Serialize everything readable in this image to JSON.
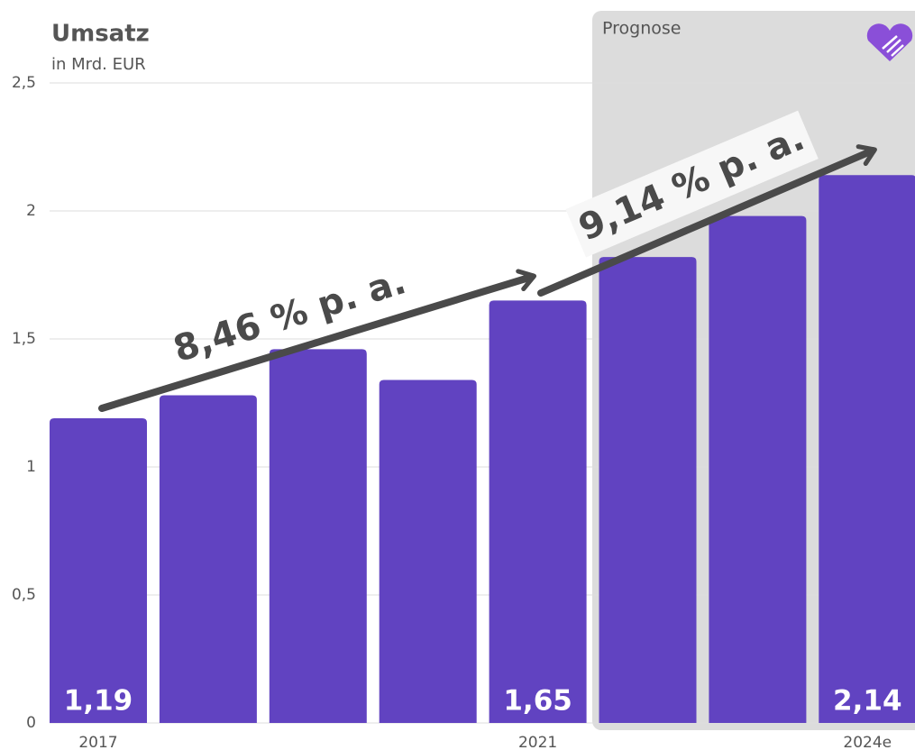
{
  "chart_data": {
    "type": "bar",
    "title": "Umsatz",
    "subtitle": "in Mrd. EUR",
    "categories": [
      "2017",
      null,
      null,
      null,
      "2021",
      null,
      null,
      "2024e"
    ],
    "values": [
      1.19,
      1.28,
      1.46,
      1.34,
      1.65,
      1.82,
      1.98,
      2.14
    ],
    "value_labels": [
      "1,19",
      null,
      null,
      null,
      "1,65",
      null,
      null,
      "2,14"
    ],
    "color": "#6143c1",
    "ylim": [
      0,
      2.5
    ],
    "yticks": [
      0,
      {
        "value": 0.5,
        "label": "0,5"
      },
      1,
      {
        "value": 1.5,
        "label": "1,5"
      },
      2,
      {
        "value": 2.5,
        "label": "2,5"
      }
    ],
    "grid": true,
    "forecast_label": "Prognose",
    "annotations": [
      "8,46 % p. a.",
      "9,14 % p. a."
    ]
  }
}
